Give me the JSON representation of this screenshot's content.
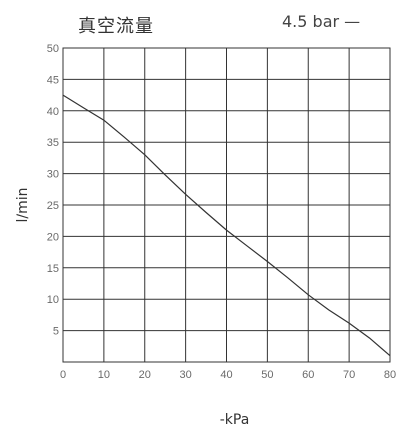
{
  "header": {
    "title": "真空流量",
    "legend_label": "4.5 bar —"
  },
  "chart_data": {
    "type": "line",
    "title": "真空流量",
    "xlabel": "-kPa",
    "ylabel": "l/min",
    "xlim": [
      0,
      80
    ],
    "ylim": [
      0,
      50
    ],
    "x_ticks": [
      0,
      10,
      20,
      30,
      40,
      50,
      60,
      70,
      80
    ],
    "y_ticks": [
      5,
      10,
      15,
      20,
      25,
      30,
      35,
      40,
      45,
      50
    ],
    "grid": true,
    "legend_placement": "top-right",
    "series": [
      {
        "name": "4.5 bar",
        "x": [
          0,
          5,
          10,
          15,
          20,
          25,
          30,
          35,
          40,
          45,
          50,
          55,
          60,
          65,
          70,
          75,
          80
        ],
        "values": [
          42.5,
          40.5,
          38.5,
          35.8,
          33,
          29.8,
          26.7,
          23.8,
          21,
          18.5,
          16,
          13.4,
          10.7,
          8.3,
          6.2,
          3.8,
          1
        ]
      }
    ]
  }
}
